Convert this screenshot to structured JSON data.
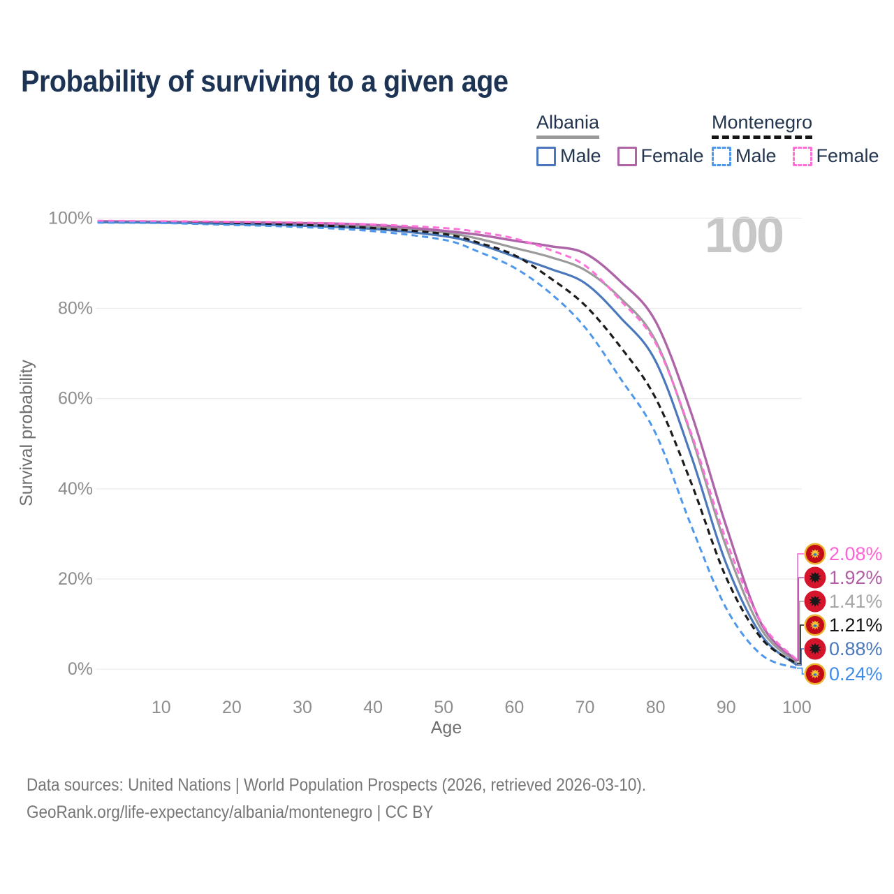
{
  "title": "Probability of surviving to a given age",
  "age_marker": "100",
  "legend": {
    "groups": [
      {
        "name": "Albania",
        "line_style": "solid",
        "underline_color": "#9a9a9a",
        "items": [
          {
            "label": "Male",
            "color": "#4a78bb"
          },
          {
            "label": "Female",
            "color": "#ae65a8"
          }
        ]
      },
      {
        "name": "Montenegro",
        "line_style": "dashed",
        "underline_color": "#161616",
        "items": [
          {
            "label": "Male",
            "color": "#4e97ea"
          },
          {
            "label": "Female",
            "color": "#ff70d9"
          }
        ]
      }
    ]
  },
  "chart_data": {
    "type": "line",
    "title": "Probability of surviving to a given age",
    "xlabel": "Age",
    "ylabel": "Survival probability",
    "xlim": [
      1,
      100
    ],
    "ylim": [
      0,
      100
    ],
    "grid": true,
    "legend_position": "top-right",
    "x_ticks": [
      10,
      20,
      30,
      40,
      50,
      60,
      70,
      80,
      90,
      100
    ],
    "y_ticks": [
      {
        "label": "100%",
        "value": 100
      },
      {
        "label": "80%",
        "value": 80
      },
      {
        "label": "60%",
        "value": 60
      },
      {
        "label": "40%",
        "value": 40
      },
      {
        "label": "20%",
        "value": 20
      },
      {
        "label": "0%",
        "value": 0
      }
    ],
    "ages": [
      1,
      10,
      20,
      30,
      40,
      50,
      55,
      60,
      65,
      70,
      75,
      80,
      85,
      90,
      95,
      100
    ],
    "series": [
      {
        "name": "Albania (both sexes)",
        "country": "Albania",
        "sex": "Both",
        "color": "#9b9b9b",
        "dash": "solid",
        "width": 3.2,
        "values": [
          99.2,
          99.1,
          98.9,
          98.6,
          98.0,
          96.8,
          95.4,
          93.4,
          91.4,
          88.5,
          82.3,
          72.8,
          52.0,
          27.1,
          8.8,
          1.41
        ]
      },
      {
        "name": "Albania Female",
        "country": "Albania",
        "sex": "Female",
        "color": "#ae65a8",
        "dash": "solid",
        "width": 3.4,
        "values": [
          99.3,
          99.2,
          99.1,
          98.9,
          98.5,
          97.2,
          96.3,
          95.0,
          93.8,
          92.2,
          86.0,
          77.1,
          57.0,
          31.7,
          10.0,
          1.92
        ]
      },
      {
        "name": "Albania Male",
        "country": "Albania",
        "sex": "Male",
        "color": "#4a78bb",
        "dash": "solid",
        "width": 3.2,
        "values": [
          99.1,
          99.0,
          98.7,
          98.3,
          97.6,
          96.0,
          94.2,
          91.5,
          88.8,
          85.6,
          78.0,
          68.3,
          47.5,
          23.4,
          7.5,
          0.88
        ]
      },
      {
        "name": "Montenegro (both sexes)",
        "country": "Montenegro",
        "sex": "Both",
        "color": "#1c1c1c",
        "dash": "dashed",
        "width": 3.2,
        "values": [
          99.2,
          99.1,
          98.9,
          98.5,
          97.8,
          96.5,
          94.5,
          91.8,
          86.8,
          80.7,
          71.5,
          60.1,
          41.5,
          20.3,
          6.8,
          1.21
        ]
      },
      {
        "name": "Montenegro Female",
        "country": "Montenegro",
        "sex": "Female",
        "color": "#ff70d9",
        "dash": "dashed",
        "width": 3.0,
        "values": [
          99.4,
          99.3,
          99.2,
          99.0,
          98.6,
          97.8,
          96.9,
          95.5,
          93.0,
          89.5,
          81.8,
          72.3,
          52.5,
          28.6,
          10.3,
          2.08
        ]
      },
      {
        "name": "Montenegro Male",
        "country": "Montenegro",
        "sex": "Male",
        "color": "#4e97ea",
        "dash": "dashed",
        "width": 3.0,
        "values": [
          99.0,
          98.9,
          98.5,
          98.0,
          97.1,
          95.2,
          92.5,
          89.0,
          83.5,
          75.8,
          64.5,
          52.3,
          32.0,
          13.5,
          3.2,
          0.24
        ]
      }
    ]
  },
  "end_labels": [
    {
      "text": "2.08%",
      "pct": 2.08,
      "color": "#ff63d3",
      "flag": "montenegro",
      "series": "Montenegro Female"
    },
    {
      "text": "1.92%",
      "pct": 1.92,
      "color": "#b15ba4",
      "flag": "albania",
      "series": "Albania Female"
    },
    {
      "text": "1.41%",
      "pct": 1.41,
      "color": "#a6a6a6",
      "flag": "albania",
      "series": "Albania (both sexes)"
    },
    {
      "text": "1.21%",
      "pct": 1.21,
      "color": "#141414",
      "flag": "montenegro",
      "series": "Montenegro (both sexes)"
    },
    {
      "text": "0.88%",
      "pct": 0.88,
      "color": "#4a78bb",
      "flag": "albania",
      "series": "Albania Male"
    },
    {
      "text": "0.24%",
      "pct": 0.24,
      "color": "#3f8ce8",
      "flag": "montenegro",
      "series": "Montenegro Male"
    }
  ],
  "flag_colors": {
    "albania_red": "#d4152c",
    "albania_eagle": "#191919",
    "montenegro_red": "#c20a18",
    "montenegro_gold": "#e9b42d",
    "montenegro_eagle": "#f2c437",
    "montenegro_shield": "#3b76c8"
  },
  "footer": {
    "line1": "Data sources: United Nations | World Population Prospects (2026, retrieved 2026-03-10).",
    "line2": "GeoRank.org/life-expectancy/albania/montenegro | CC BY"
  }
}
